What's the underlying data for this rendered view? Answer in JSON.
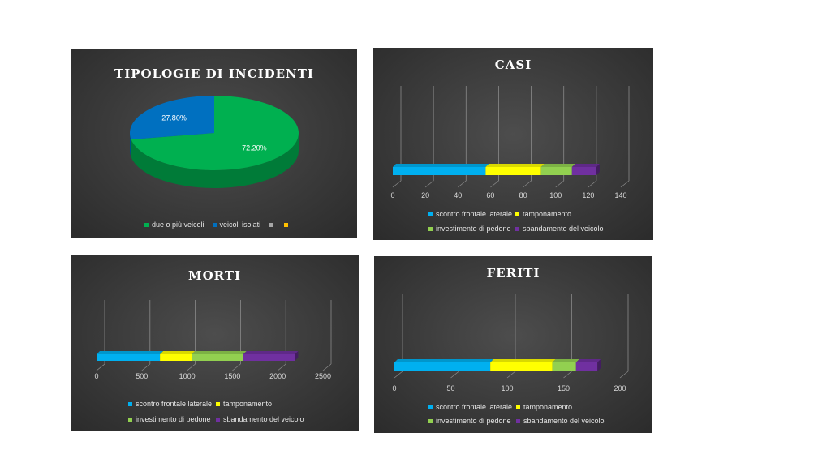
{
  "charts": [
    {
      "id": "tipologie",
      "type": "pie",
      "title": "TIPOLOGIE DI INCIDENTI",
      "slices": [
        {
          "label": "due o più veicoli",
          "value": 72.2,
          "display": "72.20%",
          "color": "#00b050"
        },
        {
          "label": "veicoli isolati",
          "value": 27.8,
          "display": "27.80%",
          "color": "#0070c0"
        }
      ],
      "legend": [
        {
          "label": "due o più veicoli",
          "color": "#00b050"
        },
        {
          "label": "veicoli isolati",
          "color": "#0070c0"
        },
        {
          "label": "",
          "color": "#a6a6a6"
        },
        {
          "label": "",
          "color": "#ffc000"
        }
      ]
    },
    {
      "id": "casi",
      "type": "bar",
      "stacked": true,
      "orientation": "horizontal",
      "title": "CASI",
      "xlim": [
        0,
        140
      ],
      "ticks": [
        0,
        20,
        40,
        60,
        80,
        100,
        120,
        140
      ],
      "series": [
        {
          "name": "scontro frontale laterale",
          "values": [
            57
          ],
          "color": "#00b0f0"
        },
        {
          "name": "tamponamento",
          "values": [
            34
          ],
          "color": "#ffff00"
        },
        {
          "name": "investimento di pedone",
          "values": [
            19
          ],
          "color": "#92d050"
        },
        {
          "name": "sbandamento del veicolo",
          "values": [
            15
          ],
          "color": "#7030a0"
        }
      ]
    },
    {
      "id": "morti",
      "type": "bar",
      "stacked": true,
      "orientation": "horizontal",
      "title": "MORTI",
      "xlim": [
        0,
        2500
      ],
      "ticks": [
        0,
        500,
        1000,
        1500,
        2000,
        2500
      ],
      "series": [
        {
          "name": "scontro frontale laterale",
          "values": [
            700
          ],
          "color": "#00b0f0"
        },
        {
          "name": "tamponamento",
          "values": [
            350
          ],
          "color": "#ffff00"
        },
        {
          "name": "investimento di pedone",
          "values": [
            570
          ],
          "color": "#92d050"
        },
        {
          "name": "sbandamento del veicolo",
          "values": [
            570
          ],
          "color": "#7030a0"
        }
      ]
    },
    {
      "id": "feriti",
      "type": "bar",
      "stacked": true,
      "orientation": "horizontal",
      "title": "FERITI",
      "xlim": [
        0,
        200
      ],
      "ticks": [
        0,
        50,
        100,
        150,
        200
      ],
      "series": [
        {
          "name": "scontro frontale laterale",
          "values": [
            85
          ],
          "color": "#00b0f0"
        },
        {
          "name": "tamponamento",
          "values": [
            55
          ],
          "color": "#ffff00"
        },
        {
          "name": "investimento di pedone",
          "values": [
            21
          ],
          "color": "#92d050"
        },
        {
          "name": "sbandamento del veicolo",
          "values": [
            19
          ],
          "color": "#7030a0"
        }
      ]
    }
  ]
}
